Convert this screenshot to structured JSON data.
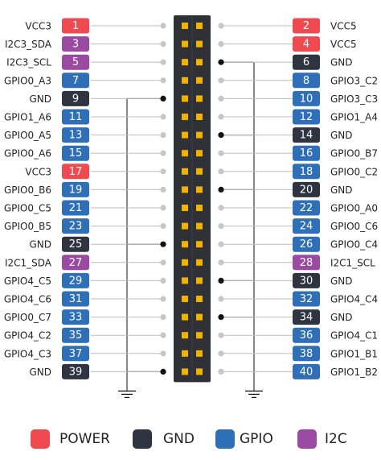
{
  "colors": {
    "POWER": "#ef4a4f",
    "GND": "#2e3540",
    "GPIO": "#2f6fb7",
    "I2C": "#9a4aa0",
    "header_body": "#2f3137",
    "pin_pad": "#f0b400",
    "lead_line": "#bdbdbd",
    "lead_dot": "#c7c7c7",
    "ground_line": "#111111"
  },
  "pins": [
    {
      "num": "1",
      "label": "VCC3",
      "type": "POWER"
    },
    {
      "num": "2",
      "label": "VCC5",
      "type": "POWER"
    },
    {
      "num": "3",
      "label": "I2C3_SDA",
      "type": "I2C"
    },
    {
      "num": "4",
      "label": "VCC5",
      "type": "POWER"
    },
    {
      "num": "5",
      "label": "I2C3_SCL",
      "type": "I2C"
    },
    {
      "num": "6",
      "label": "GND",
      "type": "GND"
    },
    {
      "num": "7",
      "label": "GPIO0_A3",
      "type": "GPIO"
    },
    {
      "num": "8",
      "label": "GPIO3_C2",
      "type": "GPIO"
    },
    {
      "num": "9",
      "label": "GND",
      "type": "GND"
    },
    {
      "num": "10",
      "label": "GPIO3_C3",
      "type": "GPIO"
    },
    {
      "num": "11",
      "label": "GPIO1_A6",
      "type": "GPIO"
    },
    {
      "num": "12",
      "label": "GPIO1_A4",
      "type": "GPIO"
    },
    {
      "num": "13",
      "label": "GPIO0_A5",
      "type": "GPIO"
    },
    {
      "num": "14",
      "label": "GND",
      "type": "GND"
    },
    {
      "num": "15",
      "label": "GPIO0_A6",
      "type": "GPIO"
    },
    {
      "num": "16",
      "label": "GPIO0_B7",
      "type": "GPIO"
    },
    {
      "num": "17",
      "label": "VCC3",
      "type": "POWER"
    },
    {
      "num": "18",
      "label": "GPIO0_C2",
      "type": "GPIO"
    },
    {
      "num": "19",
      "label": "GPIO0_B6",
      "type": "GPIO"
    },
    {
      "num": "20",
      "label": "GND",
      "type": "GND"
    },
    {
      "num": "21",
      "label": "GPIO0_C5",
      "type": "GPIO"
    },
    {
      "num": "22",
      "label": "GPIO0_A0",
      "type": "GPIO"
    },
    {
      "num": "23",
      "label": "GPIO0_B5",
      "type": "GPIO"
    },
    {
      "num": "24",
      "label": "GPIO0_C6",
      "type": "GPIO"
    },
    {
      "num": "25",
      "label": "GND",
      "type": "GND"
    },
    {
      "num": "26",
      "label": "GPIO0_C4",
      "type": "GPIO"
    },
    {
      "num": "27",
      "label": "I2C1_SDA",
      "type": "I2C"
    },
    {
      "num": "28",
      "label": "I2C1_SCL",
      "type": "I2C"
    },
    {
      "num": "29",
      "label": "GPIO4_C5",
      "type": "GPIO"
    },
    {
      "num": "30",
      "label": "GND",
      "type": "GND"
    },
    {
      "num": "31",
      "label": "GPIO4_C6",
      "type": "GPIO"
    },
    {
      "num": "32",
      "label": "GPIO4_C4",
      "type": "GPIO"
    },
    {
      "num": "33",
      "label": "GPIO0_C7",
      "type": "GPIO"
    },
    {
      "num": "34",
      "label": "GND",
      "type": "GND"
    },
    {
      "num": "35",
      "label": "GPIO4_C2",
      "type": "GPIO"
    },
    {
      "num": "36",
      "label": "GPIO4_C1",
      "type": "GPIO"
    },
    {
      "num": "37",
      "label": "GPIO4_C3",
      "type": "GPIO"
    },
    {
      "num": "38",
      "label": "GPIO1_B1",
      "type": "GPIO"
    },
    {
      "num": "39",
      "label": "GND",
      "type": "GND"
    },
    {
      "num": "40",
      "label": "GPIO1_B2",
      "type": "GPIO"
    }
  ],
  "legend": [
    {
      "label": "POWER",
      "type": "POWER"
    },
    {
      "label": "GND",
      "type": "GND"
    },
    {
      "label": "GPIO",
      "type": "GPIO"
    },
    {
      "label": "I2C",
      "type": "I2C"
    }
  ]
}
